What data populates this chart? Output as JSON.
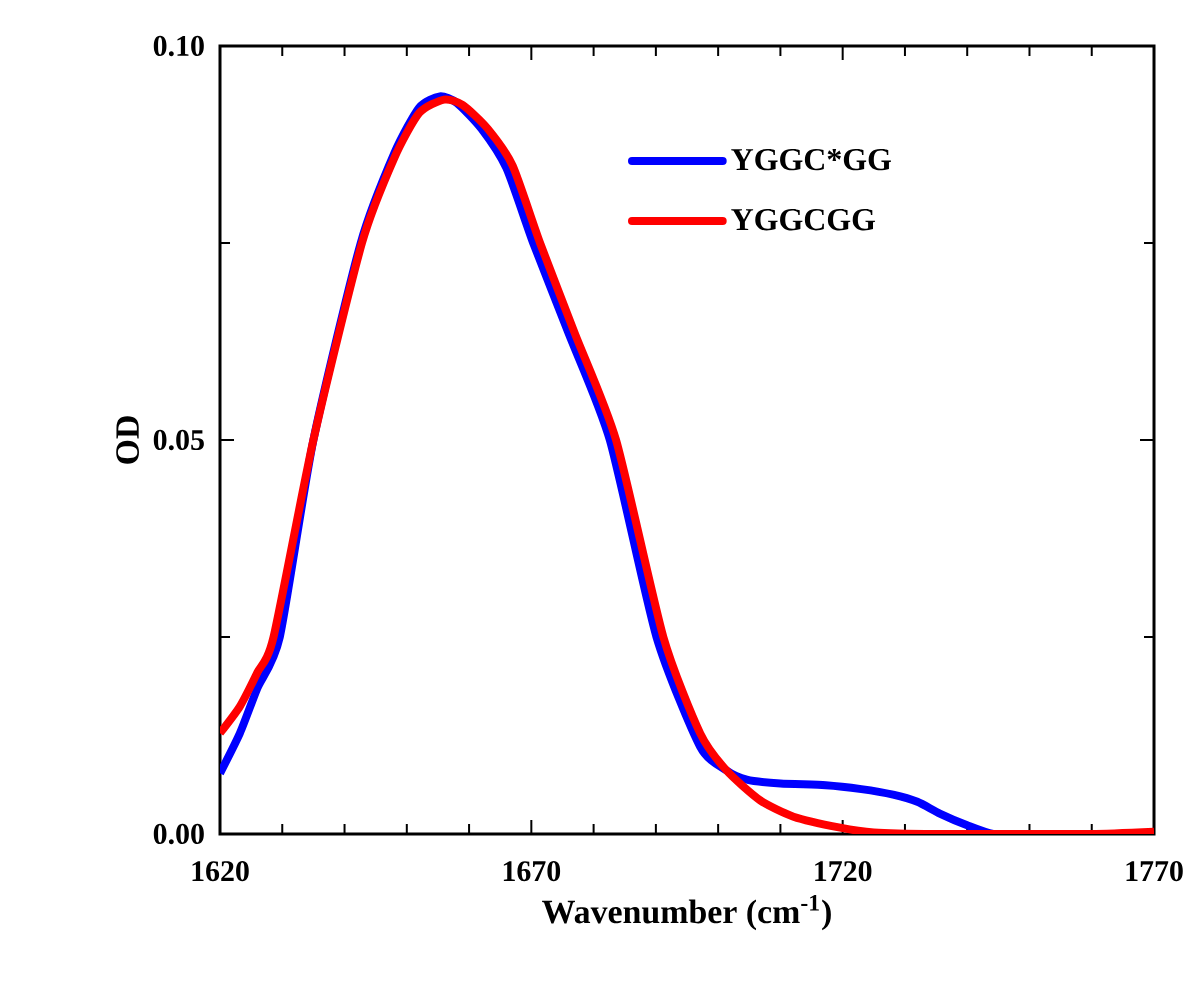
{
  "chart_data": {
    "type": "line",
    "xlabel": "Wavenumber (cm$^{-1}$)",
    "ylabel": "OD",
    "xlim": [
      1620,
      1770
    ],
    "ylim": [
      0,
      0.1
    ],
    "xticks": [
      1620,
      1670,
      1720,
      1770
    ],
    "yticks": [
      {
        "value": 0,
        "label": "0.00"
      },
      {
        "value": 0.05,
        "label": "0.05"
      },
      {
        "value": 0.1,
        "label": "0.10"
      }
    ],
    "legend": "top right",
    "grid": false,
    "marker": "none",
    "line_style": "solid",
    "series": [
      {
        "name": "YGGC*GG",
        "color": "#0000ff",
        "x": [
          1620,
          1623.2,
          1626,
          1629.6,
          1635,
          1642.6,
          1648,
          1652,
          1655.3,
          1658,
          1662,
          1666,
          1670.3,
          1676,
          1682.6,
          1690.1,
          1697.1,
          1701.3,
          1704.6,
          1710,
          1717.3,
          1723,
          1728.1,
          1732,
          1735.6,
          1740,
          1744.2,
          1750
        ],
        "values": [
          0.0077,
          0.0128,
          0.0185,
          0.025,
          0.05,
          0.075,
          0.0864,
          0.0922,
          0.0936,
          0.0928,
          0.0895,
          0.0845,
          0.075,
          0.0635,
          0.05,
          0.025,
          0.0111,
          0.0081,
          0.0069,
          0.0064,
          0.0062,
          0.0057,
          0.005,
          0.0041,
          0.0026,
          0.0011,
          0.0,
          0.0
        ]
      },
      {
        "name": "YGGCGG",
        "color": "#ff0000",
        "x": [
          1620,
          1623.2,
          1626,
          1628.6,
          1635,
          1642.8,
          1648,
          1652,
          1656,
          1659,
          1663,
          1667,
          1671.4,
          1677,
          1683.6,
          1691.2,
          1697.1,
          1701.3,
          1706.7,
          1712.1,
          1719.6,
          1725,
          1735,
          1750,
          1760,
          1770
        ],
        "values": [
          0.0128,
          0.0162,
          0.0205,
          0.025,
          0.05,
          0.075,
          0.0858,
          0.0915,
          0.0932,
          0.0925,
          0.0895,
          0.0848,
          0.075,
          0.0635,
          0.05,
          0.025,
          0.0128,
          0.0081,
          0.0043,
          0.0022,
          0.0008,
          0.0002,
          0.0,
          0.0,
          0.0,
          0.0003
        ]
      }
    ]
  }
}
